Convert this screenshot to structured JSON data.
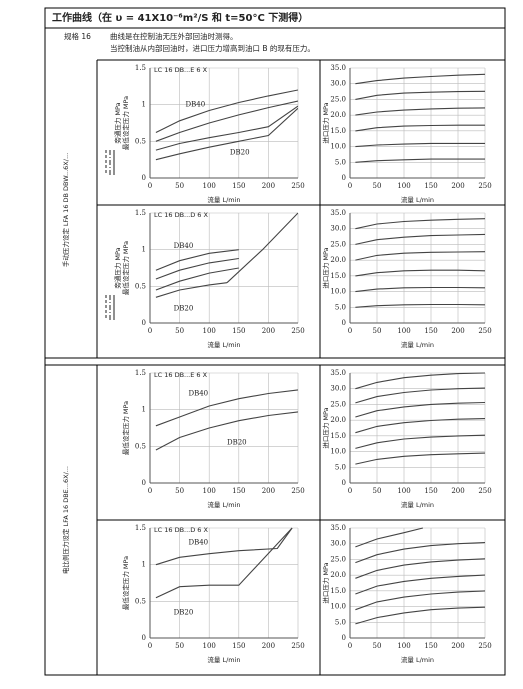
{
  "header": {
    "title": "工作曲线（在 υ = 41X10⁻⁶m²/S 和 t=50°C 下测得）",
    "size": "规格 16",
    "notes": [
      "曲线是在控制油无压外部回油时测得。",
      "当控制油从内部回油时，进口压力增高到油口 B 的现有压力。"
    ]
  },
  "side_labels": [
    "手动压力设定 LFA 16 DB DBW...6X/...",
    "电比例压力设定 LFA 16 DBE...6X/..."
  ],
  "chart_data": [
    {
      "type": "line",
      "title": "LC 16 DB...E 6 X",
      "y_labels": [
        "旁通压力 MPa",
        "最低设定压力 MPa"
      ],
      "x_label": "流量 L/min",
      "xlim": [
        0,
        250
      ],
      "xticks": [
        0,
        50,
        100,
        150,
        200,
        250
      ],
      "ylim": [
        0,
        1.5
      ],
      "yticks": [
        0,
        0.5,
        1.0,
        1.5
      ],
      "grid": true,
      "annotations": [
        {
          "text": "DB40",
          "x": 60,
          "y": 1.0
        },
        {
          "text": "DB20",
          "x": 135,
          "y": 0.35
        }
      ],
      "series": [
        {
          "color": "#444",
          "x": [
            10,
            50,
            100,
            150,
            200,
            250
          ],
          "values": [
            0.62,
            0.78,
            0.92,
            1.03,
            1.12,
            1.2
          ]
        },
        {
          "color": "#444",
          "x": [
            10,
            50,
            100,
            150,
            200,
            250
          ],
          "values": [
            0.5,
            0.62,
            0.75,
            0.86,
            0.96,
            1.05
          ]
        },
        {
          "color": "#444",
          "x": [
            10,
            50,
            100,
            150,
            200,
            250
          ],
          "values": [
            0.38,
            0.47,
            0.55,
            0.62,
            0.7,
            0.98
          ]
        },
        {
          "color": "#444",
          "x": [
            10,
            50,
            100,
            150,
            200,
            250
          ],
          "values": [
            0.25,
            0.33,
            0.42,
            0.5,
            0.58,
            0.95
          ]
        }
      ]
    },
    {
      "type": "line",
      "y_labels": [
        "进口压力 MPa"
      ],
      "x_label": "流量 L/min",
      "xlim": [
        0,
        250
      ],
      "xticks": [
        0,
        50,
        100,
        150,
        200,
        250
      ],
      "ylim": [
        0,
        35
      ],
      "yticks": [
        0,
        {
          "value": 5,
          "label": "5.0"
        },
        {
          "value": 10,
          "label": "10.0"
        },
        {
          "value": 15,
          "label": "15.0"
        },
        {
          "value": 20,
          "label": "20.0"
        },
        {
          "value": 25,
          "label": "25.0"
        },
        {
          "value": 30,
          "label": "30.0"
        },
        {
          "value": 35,
          "label": "35.0"
        }
      ],
      "grid": true,
      "series": [
        {
          "color": "#444",
          "x": [
            10,
            50,
            100,
            150,
            200,
            250
          ],
          "values": [
            30,
            31,
            31.8,
            32.3,
            32.7,
            33
          ]
        },
        {
          "color": "#444",
          "x": [
            10,
            50,
            100,
            150,
            200,
            250
          ],
          "values": [
            25,
            26.3,
            27,
            27.3,
            27.5,
            27.6
          ]
        },
        {
          "color": "#444",
          "x": [
            10,
            50,
            100,
            150,
            200,
            250
          ],
          "values": [
            20,
            21,
            21.6,
            22,
            22.2,
            22.3
          ]
        },
        {
          "color": "#444",
          "x": [
            10,
            50,
            100,
            150,
            200,
            250
          ],
          "values": [
            15,
            16,
            16.5,
            16.7,
            16.8,
            16.8
          ]
        },
        {
          "color": "#444",
          "x": [
            10,
            50,
            100,
            150,
            200,
            250
          ],
          "values": [
            10,
            10.5,
            10.8,
            11,
            11,
            11
          ]
        },
        {
          "color": "#444",
          "x": [
            10,
            50,
            100,
            150,
            200,
            250
          ],
          "values": [
            5,
            5.5,
            5.8,
            6,
            6,
            6
          ]
        }
      ]
    },
    {
      "type": "line",
      "title": "LC 16 DB...D 6 X",
      "y_labels": [
        "旁通压力 MPa",
        "最低设定压力 MPa"
      ],
      "x_label": "流量 L/min",
      "xlim": [
        0,
        250
      ],
      "xticks": [
        0,
        50,
        100,
        150,
        200,
        250
      ],
      "ylim": [
        0,
        1.5
      ],
      "yticks": [
        0,
        0.5,
        1.0,
        1.5
      ],
      "grid": true,
      "annotations": [
        {
          "text": "DB40",
          "x": 40,
          "y": 1.05
        },
        {
          "text": "DB20",
          "x": 40,
          "y": 0.2
        }
      ],
      "series": [
        {
          "color": "#444",
          "x": [
            10,
            50,
            100,
            150
          ],
          "values": [
            0.72,
            0.85,
            0.95,
            1.0
          ]
        },
        {
          "color": "#444",
          "x": [
            10,
            50,
            100,
            150
          ],
          "values": [
            0.6,
            0.72,
            0.82,
            0.88
          ]
        },
        {
          "color": "#444",
          "x": [
            10,
            50,
            100,
            150
          ],
          "values": [
            0.45,
            0.57,
            0.68,
            0.75
          ]
        },
        {
          "color": "#444",
          "x": [
            10,
            50,
            100,
            130
          ],
          "values": [
            0.35,
            0.45,
            0.52,
            0.55
          ]
        },
        {
          "color": "#444",
          "x": [
            130,
            190,
            250
          ],
          "values": [
            0.55,
            1.0,
            1.5
          ]
        }
      ]
    },
    {
      "type": "line",
      "y_labels": [
        "进口压力 MPa"
      ],
      "x_label": "流量 L/min",
      "xlim": [
        0,
        250
      ],
      "xticks": [
        0,
        50,
        100,
        150,
        200,
        250
      ],
      "ylim": [
        0,
        35
      ],
      "yticks": [
        0,
        {
          "value": 5,
          "label": "5.0"
        },
        {
          "value": 10,
          "label": "10.0"
        },
        {
          "value": 15,
          "label": "15.0"
        },
        {
          "value": 20,
          "label": "20.0"
        },
        {
          "value": 25,
          "label": "25.0"
        },
        {
          "value": 30,
          "label": "30.0"
        },
        {
          "value": 35,
          "label": "35.0"
        }
      ],
      "grid": true,
      "series": [
        {
          "color": "#444",
          "x": [
            10,
            50,
            100,
            150,
            200,
            250
          ],
          "values": [
            30,
            31.5,
            32.3,
            32.7,
            33,
            33.2
          ]
        },
        {
          "color": "#444",
          "x": [
            10,
            50,
            100,
            150,
            200,
            250
          ],
          "values": [
            25,
            26.5,
            27.3,
            27.8,
            28,
            28.2
          ]
        },
        {
          "color": "#444",
          "x": [
            10,
            50,
            100,
            150,
            200,
            250
          ],
          "values": [
            20,
            21.5,
            22.2,
            22.5,
            22.6,
            22.7
          ]
        },
        {
          "color": "#444",
          "x": [
            10,
            50,
            100,
            150,
            200,
            250
          ],
          "values": [
            15,
            16,
            16.6,
            16.8,
            16.8,
            16.6
          ]
        },
        {
          "color": "#444",
          "x": [
            10,
            50,
            100,
            150,
            200,
            250
          ],
          "values": [
            10,
            10.8,
            11.2,
            11.3,
            11.3,
            11.2
          ]
        },
        {
          "color": "#444",
          "x": [
            10,
            50,
            100,
            150,
            200,
            250
          ],
          "values": [
            5,
            5.5,
            5.8,
            5.9,
            5.9,
            5.8
          ]
        }
      ]
    },
    {
      "type": "line",
      "title": "LC 16 DB...E 6 X",
      "y_labels": [
        "最低设定压力 MPa"
      ],
      "x_label": "流量 L/min",
      "xlim": [
        0,
        250
      ],
      "xticks": [
        0,
        50,
        100,
        150,
        200,
        250
      ],
      "ylim": [
        0,
        1.5
      ],
      "yticks": [
        0,
        0.5,
        1.0,
        1.5
      ],
      "grid": true,
      "annotations": [
        {
          "text": "DB40",
          "x": 65,
          "y": 1.22
        },
        {
          "text": "DB20",
          "x": 130,
          "y": 0.55
        }
      ],
      "series": [
        {
          "color": "#444",
          "x": [
            10,
            50,
            100,
            150,
            200,
            250
          ],
          "values": [
            0.78,
            0.9,
            1.05,
            1.15,
            1.22,
            1.27
          ]
        },
        {
          "color": "#444",
          "x": [
            10,
            50,
            100,
            150,
            200,
            250
          ],
          "values": [
            0.45,
            0.62,
            0.75,
            0.85,
            0.92,
            0.97
          ]
        }
      ]
    },
    {
      "type": "line",
      "y_labels": [
        "进口压力 MPa"
      ],
      "x_label": "流量 L/min",
      "xlim": [
        0,
        250
      ],
      "xticks": [
        0,
        50,
        100,
        150,
        200,
        250
      ],
      "ylim": [
        0,
        35
      ],
      "yticks": [
        0,
        {
          "value": 5,
          "label": "5.0"
        },
        {
          "value": 10,
          "label": "10.0"
        },
        {
          "value": 15,
          "label": "15.0"
        },
        {
          "value": 20,
          "label": "20.0"
        },
        {
          "value": 25,
          "label": "25.0"
        },
        {
          "value": 30,
          "label": "30.0"
        },
        {
          "value": 35,
          "label": "35.0"
        }
      ],
      "grid": true,
      "series": [
        {
          "color": "#444",
          "x": [
            10,
            50,
            100,
            150,
            200,
            250
          ],
          "values": [
            30,
            32,
            33.5,
            34.3,
            34.8,
            35
          ]
        },
        {
          "color": "#444",
          "x": [
            10,
            50,
            100,
            150,
            200,
            250
          ],
          "values": [
            25.5,
            27.5,
            28.8,
            29.6,
            30,
            30.2
          ]
        },
        {
          "color": "#444",
          "x": [
            10,
            50,
            100,
            150,
            200,
            250
          ],
          "values": [
            21,
            23,
            24.2,
            25,
            25.4,
            25.6
          ]
        },
        {
          "color": "#444",
          "x": [
            10,
            50,
            100,
            150,
            200,
            250
          ],
          "values": [
            16,
            18,
            19.2,
            19.9,
            20.3,
            20.5
          ]
        },
        {
          "color": "#444",
          "x": [
            10,
            50,
            100,
            150,
            200,
            250
          ],
          "values": [
            11,
            12.8,
            14,
            14.6,
            15,
            15.2
          ]
        },
        {
          "color": "#444",
          "x": [
            10,
            50,
            100,
            150,
            200,
            250
          ],
          "values": [
            6,
            7.5,
            8.5,
            9,
            9.3,
            9.5
          ]
        }
      ]
    },
    {
      "type": "line",
      "title": "LC 16 DB...D 6 X",
      "y_labels": [
        "最低设定压力 MPa"
      ],
      "x_label": "流量 L/min",
      "xlim": [
        0,
        250
      ],
      "xticks": [
        0,
        50,
        100,
        150,
        200,
        250
      ],
      "ylim": [
        0,
        1.5
      ],
      "yticks": [
        0,
        0.5,
        1.0,
        1.5
      ],
      "grid": true,
      "annotations": [
        {
          "text": "DB40",
          "x": 65,
          "y": 1.3
        },
        {
          "text": "DB20",
          "x": 40,
          "y": 0.35
        }
      ],
      "series": [
        {
          "color": "#444",
          "x": [
            10,
            50,
            100,
            150,
            215,
            240
          ],
          "values": [
            1.0,
            1.1,
            1.15,
            1.19,
            1.22,
            1.5
          ]
        },
        {
          "color": "#444",
          "x": [
            10,
            50,
            100,
            150,
            240
          ],
          "values": [
            0.55,
            0.7,
            0.72,
            0.72,
            1.5
          ]
        }
      ]
    },
    {
      "type": "line",
      "y_labels": [
        "进口压力 MPa"
      ],
      "x_label": "流量 L/min",
      "xlim": [
        0,
        250
      ],
      "xticks": [
        0,
        50,
        100,
        150,
        200,
        250
      ],
      "ylim": [
        0,
        35
      ],
      "yticks": [
        0,
        {
          "value": 5,
          "label": "5.0"
        },
        {
          "value": 10,
          "label": "10.0"
        },
        {
          "value": 15,
          "label": "15.0"
        },
        {
          "value": 20,
          "label": "20.0"
        },
        {
          "value": 25,
          "label": "25.0"
        },
        {
          "value": 30,
          "label": "30.0"
        },
        {
          "value": 35,
          "label": "35.0"
        }
      ],
      "grid": true,
      "series": [
        {
          "color": "#444",
          "x": [
            10,
            50,
            100,
            135
          ],
          "values": [
            29,
            31.5,
            33.5,
            35
          ]
        },
        {
          "color": "#444",
          "x": [
            10,
            50,
            100,
            150,
            200,
            250
          ],
          "values": [
            24,
            26.5,
            28.3,
            29.4,
            30,
            30.4
          ]
        },
        {
          "color": "#444",
          "x": [
            10,
            50,
            100,
            150,
            200,
            250
          ],
          "values": [
            19,
            21.5,
            23.2,
            24.2,
            24.8,
            25.2
          ]
        },
        {
          "color": "#444",
          "x": [
            10,
            50,
            100,
            150,
            200,
            250
          ],
          "values": [
            14,
            16.5,
            18,
            19,
            19.6,
            20
          ]
        },
        {
          "color": "#444",
          "x": [
            10,
            50,
            100,
            150,
            200,
            250
          ],
          "values": [
            9,
            11.5,
            13,
            14,
            14.6,
            15
          ]
        },
        {
          "color": "#444",
          "x": [
            10,
            50,
            100,
            150,
            200,
            250
          ],
          "values": [
            4.5,
            6.5,
            8,
            9,
            9.5,
            9.8
          ]
        }
      ]
    }
  ]
}
